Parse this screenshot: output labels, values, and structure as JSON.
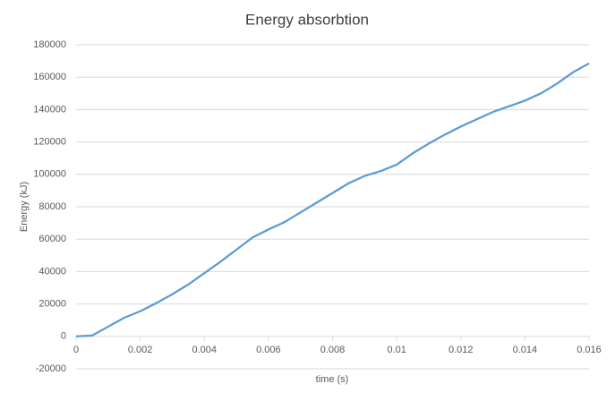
{
  "chart_data": {
    "type": "line",
    "title": "Energy absorbtion",
    "x_label": "time (s)",
    "y_label": "Energy (kJ)",
    "x": [
      0,
      0.0005,
      0.001,
      0.0015,
      0.002,
      0.0025,
      0.003,
      0.0035,
      0.004,
      0.0045,
      0.005,
      0.0055,
      0.006,
      0.0065,
      0.007,
      0.0075,
      0.008,
      0.0085,
      0.009,
      0.0095,
      0.01,
      0.0105,
      0.011,
      0.0115,
      0.012,
      0.0125,
      0.013,
      0.0135,
      0.014,
      0.0145,
      0.015,
      0.0155,
      0.016
    ],
    "values": [
      0,
      500,
      6000,
      11500,
      15500,
      20500,
      26000,
      32000,
      39000,
      46000,
      53500,
      61000,
      66000,
      70500,
      76500,
      82500,
      88500,
      94500,
      99000,
      102000,
      106000,
      113000,
      119000,
      124500,
      129500,
      134000,
      138500,
      142000,
      145500,
      150000,
      156000,
      163000,
      168500
    ],
    "color": "#5b9bd5",
    "xlim": [
      0,
      0.016
    ],
    "xticks": [
      0,
      0.002,
      0.004,
      0.006,
      0.008,
      0.01,
      0.012,
      0.014,
      0.016
    ],
    "ylim": [
      -20000,
      180000
    ],
    "yticks": [
      -20000,
      0,
      20000,
      40000,
      60000,
      80000,
      100000,
      120000,
      140000,
      160000,
      180000
    ],
    "grid": true
  }
}
